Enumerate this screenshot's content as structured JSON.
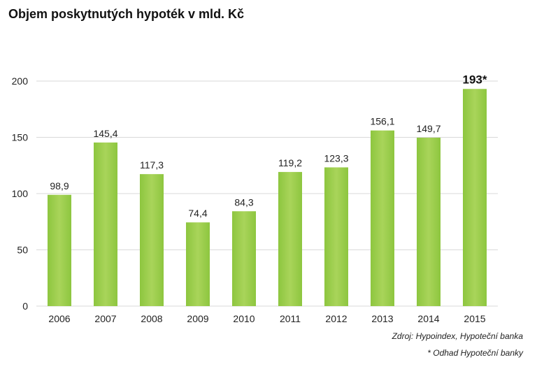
{
  "chart_data": {
    "type": "bar",
    "title": "Objem poskytnutých hypoték v mld. Kč",
    "categories": [
      "2006",
      "2007",
      "2008",
      "2009",
      "2010",
      "2011",
      "2012",
      "2013",
      "2014",
      "2015"
    ],
    "values": [
      98.9,
      145.4,
      117.3,
      74.4,
      84.3,
      119.2,
      123.3,
      156.1,
      149.7,
      193
    ],
    "data_labels": [
      "98,9",
      "145,4",
      "117,3",
      "74,4",
      "84,3",
      "119,2",
      "123,3",
      "156,1",
      "149,7",
      "193*"
    ],
    "highlight_index": 9,
    "ylim": [
      0,
      200
    ],
    "yticks": [
      0,
      50,
      100,
      150,
      200
    ],
    "ytick_labels": [
      "0",
      "50",
      "100",
      "150",
      "200"
    ],
    "grid": true,
    "bar_color": "#8dc63f",
    "bar_color_light": "#a9d45a",
    "grid_color": "#d9d9d9",
    "xlabel": "",
    "ylabel": ""
  },
  "footer": {
    "source": "Zdroj: Hypoindex, Hypoteční banka",
    "note": "* Odhad Hypoteční banky"
  }
}
